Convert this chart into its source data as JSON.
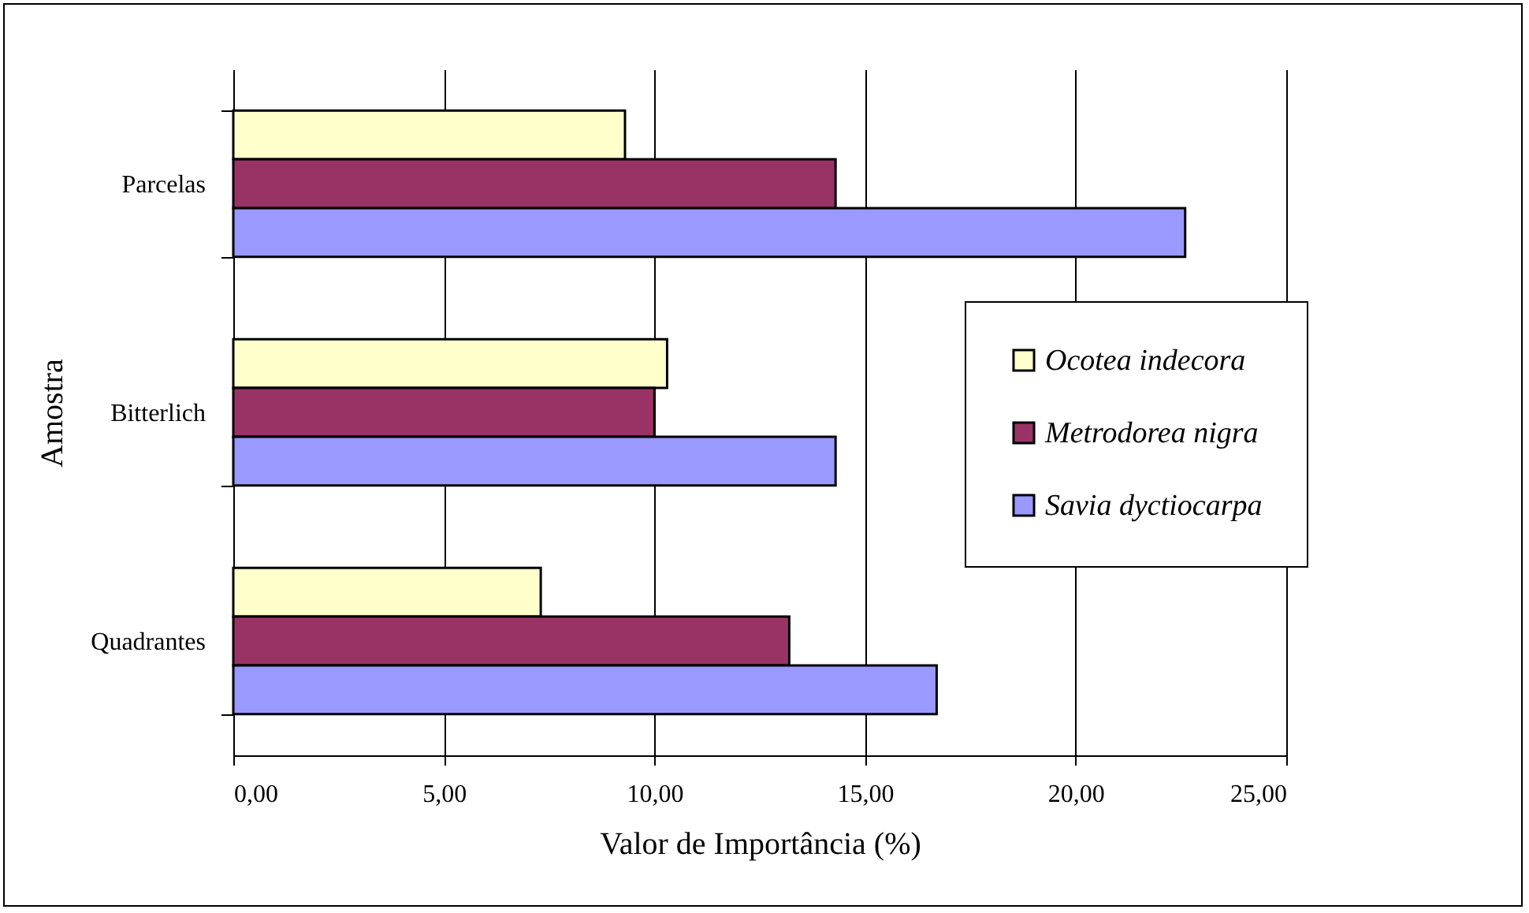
{
  "chart_data": {
    "type": "bar",
    "orientation": "horizontal",
    "xlabel": "Valor de Importância (%)",
    "ylabel": "Amostra",
    "categories": [
      "Parcelas",
      "Bitterlich",
      "Quadrantes"
    ],
    "series": [
      {
        "name": "Ocotea indecora",
        "color": "#ffffcc",
        "values": [
          9.3,
          10.3,
          7.3
        ]
      },
      {
        "name": "Metrodorea nigra",
        "color": "#993366",
        "values": [
          14.3,
          10.0,
          13.2
        ]
      },
      {
        "name": "Savia dyctiocarpa",
        "color": "#9999ff",
        "values": [
          22.6,
          14.3,
          16.7
        ]
      }
    ],
    "xlim": [
      0,
      25
    ],
    "xticks": [
      {
        "value": 0,
        "label": "0,00"
      },
      {
        "value": 5,
        "label": "5,00"
      },
      {
        "value": 10,
        "label": "10,00"
      },
      {
        "value": 15,
        "label": "15,00"
      },
      {
        "value": 20,
        "label": "20,00"
      },
      {
        "value": 25,
        "label": "25,00"
      }
    ],
    "grid": "x",
    "legend": "right"
  }
}
